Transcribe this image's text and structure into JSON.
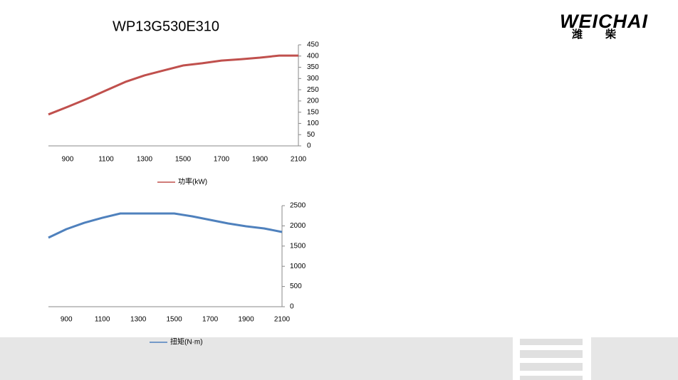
{
  "logo": "WEICHAI",
  "logo_cn": "潍柴",
  "chart_data": [
    {
      "type": "line",
      "title": "WP13G530E310",
      "x": [
        800,
        900,
        1000,
        1100,
        1200,
        1300,
        1400,
        1500,
        1600,
        1700,
        1800,
        1900,
        2000,
        2100
      ],
      "xlim": [
        800,
        2100
      ],
      "xticks": [
        900,
        1100,
        1300,
        1500,
        1700,
        1900,
        2100
      ],
      "ylim": [
        0,
        450
      ],
      "yticks": [
        0,
        50,
        100,
        150,
        200,
        250,
        300,
        350,
        400,
        450
      ],
      "series": [
        {
          "name": "功率(kW)",
          "color": "#c0504d",
          "values": [
            140,
            174,
            209,
            247,
            285,
            314,
            336,
            358,
            368,
            380,
            386,
            393,
            402,
            402
          ]
        }
      ],
      "legend": "bottom"
    },
    {
      "type": "line",
      "x": [
        800,
        900,
        1000,
        1100,
        1200,
        1300,
        1400,
        1500,
        1600,
        1700,
        1800,
        1900,
        2000,
        2100
      ],
      "xlim": [
        800,
        2100
      ],
      "xticks": [
        900,
        1100,
        1300,
        1500,
        1700,
        1900,
        2100
      ],
      "ylim": [
        0,
        2500
      ],
      "yticks": [
        0,
        500,
        1000,
        1500,
        2000,
        2500
      ],
      "series": [
        {
          "name": "扭矩(N·m)",
          "color": "#4f81bd",
          "values": [
            1708,
            1919,
            2077,
            2200,
            2306,
            2306,
            2306,
            2306,
            2236,
            2148,
            2060,
            1990,
            1937,
            1849
          ]
        }
      ],
      "legend": "bottom"
    }
  ]
}
